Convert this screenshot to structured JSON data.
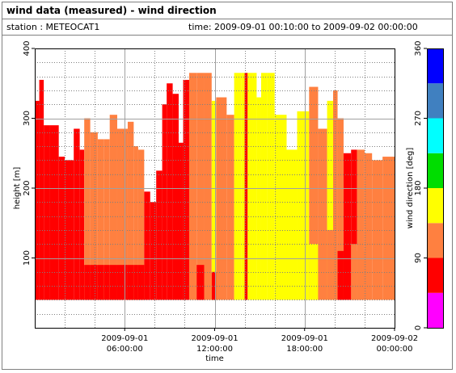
{
  "header": {
    "title": "wind data (measured) - wind direction",
    "station": "station : METEOCAT1",
    "time_range": "time: 2009-09-01 00:10:00 to 2009-09-02 00:00:00"
  },
  "chart_data": {
    "type": "heatmap",
    "title": "wind data (measured) - wind direction",
    "xlabel": "time",
    "ylabel": "height [m]",
    "x_range_hours": [
      0,
      24
    ],
    "ylim": [
      0,
      400
    ],
    "y_ticks": [
      100,
      200,
      300,
      400
    ],
    "x_ticks": [
      {
        "hour": 6,
        "line1": "2009-09-01",
        "line2": "06:00:00"
      },
      {
        "hour": 12,
        "line1": "2009-09-01",
        "line2": "12:00:00"
      },
      {
        "hour": 18,
        "line1": "2009-09-01",
        "line2": "18:00:00"
      },
      {
        "hour": 24,
        "line1": "2009-09-02",
        "line2": "00:00:00"
      }
    ],
    "grid": true,
    "colorbar": {
      "label": "wind direction [deg]",
      "range": [
        0,
        360
      ],
      "ticks": [
        0,
        90,
        180,
        270,
        360
      ],
      "bins": [
        {
          "from": 0,
          "to": 45,
          "color": "#ff00ff"
        },
        {
          "from": 45,
          "to": 90,
          "color": "#ff0000"
        },
        {
          "from": 90,
          "to": 135,
          "color": "#ff8040"
        },
        {
          "from": 135,
          "to": 180,
          "color": "#ffff00"
        },
        {
          "from": 180,
          "to": 225,
          "color": "#00dd00"
        },
        {
          "from": 225,
          "to": 270,
          "color": "#00ffff"
        },
        {
          "from": 270,
          "to": 315,
          "color": "#4080c0"
        },
        {
          "from": 315,
          "to": 360,
          "color": "#0000ff"
        }
      ]
    },
    "min_height_m": 40,
    "profiles": [
      {
        "from": 0.0,
        "to": 0.3,
        "top": 325,
        "layers": [
          [
            90,
            65
          ],
          [
            40,
            10
          ],
          [
            20,
            90
          ]
        ]
      },
      {
        "from": 0.3,
        "to": 0.6,
        "top": 355,
        "layers": [
          [
            90,
            65
          ],
          [
            40,
            20
          ]
        ]
      },
      {
        "from": 0.6,
        "to": 1.0,
        "top": 290,
        "layers": [
          [
            90,
            65
          ],
          [
            40,
            10
          ]
        ]
      },
      {
        "from": 1.0,
        "to": 1.6,
        "top": 290,
        "layers": [
          [
            90,
            65
          ],
          [
            40,
            20
          ]
        ]
      },
      {
        "from": 1.6,
        "to": 2.0,
        "top": 245,
        "layers": [
          [
            90,
            65
          ],
          [
            40,
            20
          ]
        ]
      },
      {
        "from": 2.0,
        "to": 2.6,
        "top": 240,
        "layers": [
          [
            90,
            65
          ],
          [
            40,
            20
          ]
        ]
      },
      {
        "from": 2.6,
        "to": 3.0,
        "top": 285,
        "layers": [
          [
            90,
            65
          ],
          [
            40,
            20
          ]
        ]
      },
      {
        "from": 3.0,
        "to": 3.3,
        "top": 255,
        "layers": [
          [
            90,
            65
          ],
          [
            40,
            20
          ]
        ]
      },
      {
        "from": 3.3,
        "to": 3.7,
        "top": 300,
        "layers": [
          [
            250,
            110
          ],
          [
            90,
            65
          ],
          [
            40,
            20
          ]
        ]
      },
      {
        "from": 3.7,
        "to": 4.2,
        "top": 280,
        "layers": [
          [
            250,
            110
          ],
          [
            90,
            65
          ],
          [
            40,
            60
          ]
        ]
      },
      {
        "from": 4.2,
        "to": 4.6,
        "top": 270,
        "layers": [
          [
            210,
            110
          ],
          [
            90,
            65
          ],
          [
            40,
            60
          ]
        ]
      },
      {
        "from": 4.6,
        "to": 5.0,
        "top": 270,
        "layers": [
          [
            205,
            110
          ],
          [
            90,
            65
          ],
          [
            40,
            60
          ]
        ]
      },
      {
        "from": 5.0,
        "to": 5.5,
        "top": 305,
        "layers": [
          [
            205,
            110
          ],
          [
            90,
            65
          ],
          [
            40,
            60
          ]
        ]
      },
      {
        "from": 5.5,
        "to": 6.2,
        "top": 285,
        "layers": [
          [
            175,
            110
          ],
          [
            90,
            65
          ],
          [
            40,
            60
          ]
        ]
      },
      {
        "from": 6.2,
        "to": 6.6,
        "top": 295,
        "layers": [
          [
            145,
            110
          ],
          [
            90,
            65
          ],
          [
            40,
            20
          ]
        ]
      },
      {
        "from": 6.6,
        "to": 6.9,
        "top": 260,
        "layers": [
          [
            135,
            110
          ],
          [
            90,
            65
          ],
          [
            40,
            20
          ]
        ]
      },
      {
        "from": 6.9,
        "to": 7.3,
        "top": 255,
        "layers": [
          [
            150,
            110
          ],
          [
            90,
            65
          ],
          [
            40,
            20
          ]
        ]
      },
      {
        "from": 7.3,
        "to": 7.7,
        "top": 195,
        "layers": [
          [
            140,
            65
          ],
          [
            40,
            20
          ]
        ]
      },
      {
        "from": 7.7,
        "to": 8.1,
        "top": 180,
        "layers": [
          [
            140,
            65
          ],
          [
            40,
            20
          ]
        ]
      },
      {
        "from": 8.1,
        "to": 8.5,
        "top": 225,
        "layers": [
          [
            175,
            65
          ],
          [
            40,
            20
          ]
        ]
      },
      {
        "from": 8.5,
        "to": 8.8,
        "top": 320,
        "layers": [
          [
            190,
            65
          ],
          [
            40,
            20
          ]
        ]
      },
      {
        "from": 8.8,
        "to": 9.2,
        "top": 350,
        "layers": [
          [
            200,
            65
          ],
          [
            40,
            300
          ]
        ]
      },
      {
        "from": 9.2,
        "to": 9.6,
        "top": 335,
        "layers": [
          [
            200,
            65
          ],
          [
            40,
            20
          ]
        ]
      },
      {
        "from": 9.6,
        "to": 9.9,
        "top": 265,
        "layers": [
          [
            160,
            65
          ],
          [
            40,
            20
          ]
        ]
      },
      {
        "from": 9.9,
        "to": 10.3,
        "top": 355,
        "layers": [
          [
            110,
            65
          ],
          [
            40,
            20
          ]
        ]
      },
      {
        "from": 10.3,
        "to": 10.8,
        "top": 365,
        "layers": [
          [
            110,
            110
          ]
        ]
      },
      {
        "from": 10.8,
        "to": 11.3,
        "top": 365,
        "layers": [
          [
            120,
            110
          ],
          [
            90,
            65
          ]
        ]
      },
      {
        "from": 11.3,
        "to": 11.8,
        "top": 365,
        "layers": [
          [
            120,
            110
          ]
        ]
      },
      {
        "from": 11.8,
        "to": 12.1,
        "top": 325,
        "layers": [
          [
            250,
            160
          ],
          [
            80,
            65
          ]
        ]
      },
      {
        "from": 12.1,
        "to": 12.8,
        "top": 330,
        "layers": [
          [
            245,
            110
          ]
        ]
      },
      {
        "from": 12.8,
        "to": 13.3,
        "top": 305,
        "layers": [
          [
            230,
            110
          ]
        ]
      },
      {
        "from": 13.3,
        "to": 13.8,
        "top": 365,
        "layers": [
          [
            225,
            160
          ]
        ]
      },
      {
        "from": 13.8,
        "to": 14.0,
        "top": 365,
        "layers": [
          [
            360,
            160
          ]
        ]
      },
      {
        "from": 14.0,
        "to": 14.2,
        "top": 365,
        "layers": [
          [
            360,
            65
          ]
        ]
      },
      {
        "from": 14.2,
        "to": 14.8,
        "top": 365,
        "layers": [
          [
            340,
            160
          ]
        ]
      },
      {
        "from": 14.8,
        "to": 15.1,
        "top": 330,
        "layers": [
          [
            300,
            160
          ]
        ]
      },
      {
        "from": 15.1,
        "to": 15.5,
        "top": 365,
        "layers": [
          [
            360,
            160
          ]
        ]
      },
      {
        "from": 15.5,
        "to": 16.0,
        "top": 365,
        "layers": [
          [
            340,
            160
          ]
        ]
      },
      {
        "from": 16.0,
        "to": 16.8,
        "top": 305,
        "layers": [
          [
            290,
            160
          ]
        ]
      },
      {
        "from": 16.8,
        "to": 17.5,
        "top": 255,
        "layers": [
          [
            250,
            160
          ]
        ]
      },
      {
        "from": 17.5,
        "to": 18.3,
        "top": 310,
        "layers": [
          [
            300,
            160
          ]
        ]
      },
      {
        "from": 18.3,
        "to": 18.9,
        "top": 345,
        "layers": [
          [
            260,
            110
          ],
          [
            120,
            160
          ]
        ]
      },
      {
        "from": 18.9,
        "to": 19.5,
        "top": 285,
        "layers": [
          [
            200,
            110
          ]
        ]
      },
      {
        "from": 19.5,
        "to": 19.9,
        "top": 325,
        "layers": [
          [
            310,
            160
          ],
          [
            140,
            110
          ]
        ]
      },
      {
        "from": 19.9,
        "to": 20.2,
        "top": 340,
        "layers": [
          [
            310,
            110
          ]
        ]
      },
      {
        "from": 20.2,
        "to": 20.6,
        "top": 300,
        "layers": [
          [
            270,
            110
          ],
          [
            110,
            65
          ]
        ]
      },
      {
        "from": 20.6,
        "to": 21.1,
        "top": 250,
        "layers": [
          [
            250,
            65
          ]
        ]
      },
      {
        "from": 21.1,
        "to": 21.5,
        "top": 255,
        "layers": [
          [
            220,
            65
          ],
          [
            120,
            110
          ]
        ]
      },
      {
        "from": 21.5,
        "to": 22.0,
        "top": 255,
        "layers": [
          [
            255,
            110
          ],
          [
            110,
            110
          ]
        ]
      },
      {
        "from": 22.0,
        "to": 22.5,
        "top": 250,
        "layers": [
          [
            250,
            110
          ]
        ]
      },
      {
        "from": 22.5,
        "to": 23.2,
        "top": 240,
        "layers": [
          [
            240,
            110
          ]
        ]
      },
      {
        "from": 23.2,
        "to": 24.0,
        "top": 245,
        "layers": [
          [
            245,
            110
          ]
        ]
      }
    ]
  }
}
